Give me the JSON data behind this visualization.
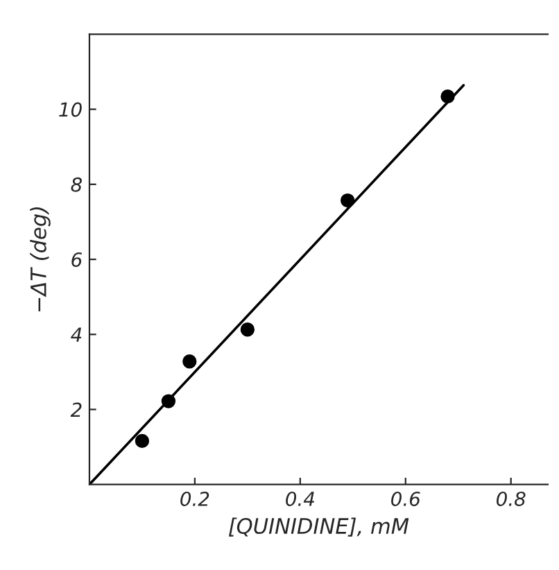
{
  "chart_data": {
    "type": "scatter",
    "xlabel": "[QUINIDINE], mM",
    "ylabel": "−ΔT (deg)",
    "xlim": [
      0,
      0.87
    ],
    "ylim": [
      0,
      12
    ],
    "xticks": [
      0.2,
      0.4,
      0.6,
      0.8
    ],
    "yticks": [
      2,
      4,
      6,
      8,
      10
    ],
    "grid": false,
    "legend": false,
    "series": [
      {
        "color": "#000000",
        "marker": "circle",
        "x": [
          0.1,
          0.15,
          0.19,
          0.3,
          0.49,
          0.68
        ],
        "values": [
          1.16,
          2.22,
          3.28,
          4.13,
          7.57,
          10.34
        ]
      },
      {
        "type": "line",
        "color": "#000000",
        "marker": "none",
        "line_style": "solid",
        "x": [
          0,
          0.71
        ],
        "values": [
          0,
          10.64
        ]
      }
    ]
  }
}
